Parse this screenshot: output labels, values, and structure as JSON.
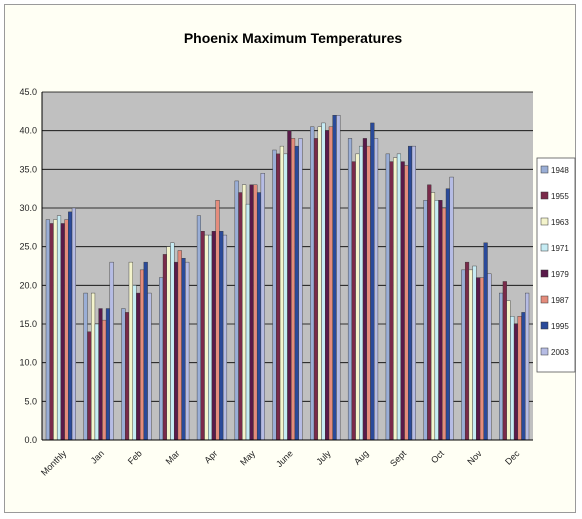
{
  "chart_data": {
    "type": "bar",
    "title": "Phoenix Maximum Temperatures",
    "xlabel": "",
    "ylabel": "",
    "ylim": [
      0,
      45
    ],
    "yticks": [
      "0.0",
      "5.0",
      "10.0",
      "15.0",
      "20.0",
      "25.0",
      "30.0",
      "35.0",
      "40.0",
      "45.0"
    ],
    "grid": true,
    "legend_position": "right",
    "categories": [
      "Monthly",
      "Jan",
      "Feb",
      "Mar",
      "Apr",
      "May",
      "June",
      "July",
      "Aug",
      "Sept",
      "Oct",
      "Nov",
      "Dec"
    ],
    "series": [
      {
        "name": "1948",
        "color": "#9aaed6",
        "values": [
          28.5,
          19.0,
          17.0,
          21.0,
          29.0,
          33.5,
          37.5,
          40.5,
          39.0,
          37.0,
          31.0,
          22.0,
          19.0
        ]
      },
      {
        "name": "1955",
        "color": "#7a2a4a",
        "values": [
          28.0,
          14.0,
          16.5,
          24.0,
          27.0,
          32.0,
          37.0,
          39.0,
          36.0,
          36.0,
          33.0,
          23.0,
          20.5
        ]
      },
      {
        "name": "1963",
        "color": "#f4f4cc",
        "values": [
          28.5,
          19.0,
          23.0,
          25.0,
          26.5,
          33.0,
          38.0,
          40.5,
          37.0,
          36.5,
          32.0,
          22.0,
          18.0
        ]
      },
      {
        "name": "1971",
        "color": "#c6ecf4",
        "values": [
          29.0,
          15.0,
          20.0,
          25.5,
          26.5,
          30.5,
          37.0,
          41.0,
          38.0,
          37.0,
          31.0,
          22.5,
          16.0
        ]
      },
      {
        "name": "1979",
        "color": "#5a1a4a",
        "values": [
          28.0,
          17.0,
          19.0,
          23.0,
          27.0,
          33.0,
          40.0,
          40.0,
          39.0,
          36.0,
          31.0,
          21.0,
          15.0
        ]
      },
      {
        "name": "1987",
        "color": "#e48c7c",
        "values": [
          28.5,
          15.5,
          22.0,
          24.5,
          31.0,
          33.0,
          39.0,
          40.5,
          38.0,
          35.5,
          30.0,
          21.0,
          16.0
        ]
      },
      {
        "name": "1995",
        "color": "#2a4a9a",
        "values": [
          29.5,
          17.0,
          23.0,
          23.5,
          27.0,
          32.0,
          38.0,
          42.0,
          41.0,
          38.0,
          32.5,
          25.5,
          16.5
        ]
      },
      {
        "name": "2003",
        "color": "#b6bce4",
        "values": [
          30.0,
          23.0,
          19.0,
          23.0,
          26.5,
          34.5,
          39.0,
          42.0,
          39.0,
          38.0,
          34.0,
          21.5,
          19.0
        ]
      }
    ]
  }
}
